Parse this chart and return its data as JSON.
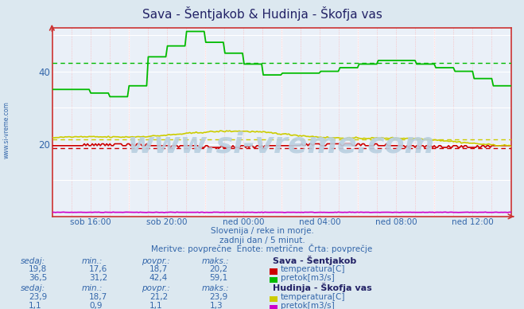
{
  "title": "Sava - Šentjakob & Hudinja - Škofja vas",
  "bg_color": "#dce8f0",
  "plot_bg_color": "#eaf0f8",
  "grid_major_color": "#ffffff",
  "grid_minor_color": "#ffaaaa",
  "xlabel_ticks": [
    "sob 16:00",
    "sob 20:00",
    "ned 00:00",
    "ned 04:00",
    "ned 08:00",
    "ned 12:00"
  ],
  "ylim": [
    0,
    52
  ],
  "yticks": [
    20,
    40
  ],
  "watermark": "www.si-vreme.com",
  "subtitle1": "Slovenija / reke in morje.",
  "subtitle2": "zadnji dan / 5 minut.",
  "subtitle3": "Meritve: povprečne  Enote: metrične  Črta: povprečje",
  "station1_name": "Sava - Šentjakob",
  "station1_temp_color": "#cc0000",
  "station1_flow_color": "#00bb00",
  "station1_sedaj": "19,8",
  "station1_min": "17,6",
  "station1_povpr": "18,7",
  "station1_maks": "20,2",
  "station1_flow_sedaj": "36,5",
  "station1_flow_min": "31,2",
  "station1_flow_povpr": "42,4",
  "station1_flow_maks": "59,1",
  "station2_name": "Hudinja - Škofja vas",
  "station2_temp_color": "#cccc00",
  "station2_flow_color": "#cc00cc",
  "station2_sedaj": "23,9",
  "station2_min": "18,7",
  "station2_povpr": "21,2",
  "station2_maks": "23,9",
  "station2_flow_sedaj": "1,1",
  "station2_flow_min": "0,9",
  "station2_flow_povpr": "1,1",
  "station2_flow_maks": "1,3",
  "avg_temp1": 18.7,
  "avg_flow1": 42.4,
  "avg_temp2": 21.2,
  "avg_flow2": 1.1,
  "n_points": 288
}
